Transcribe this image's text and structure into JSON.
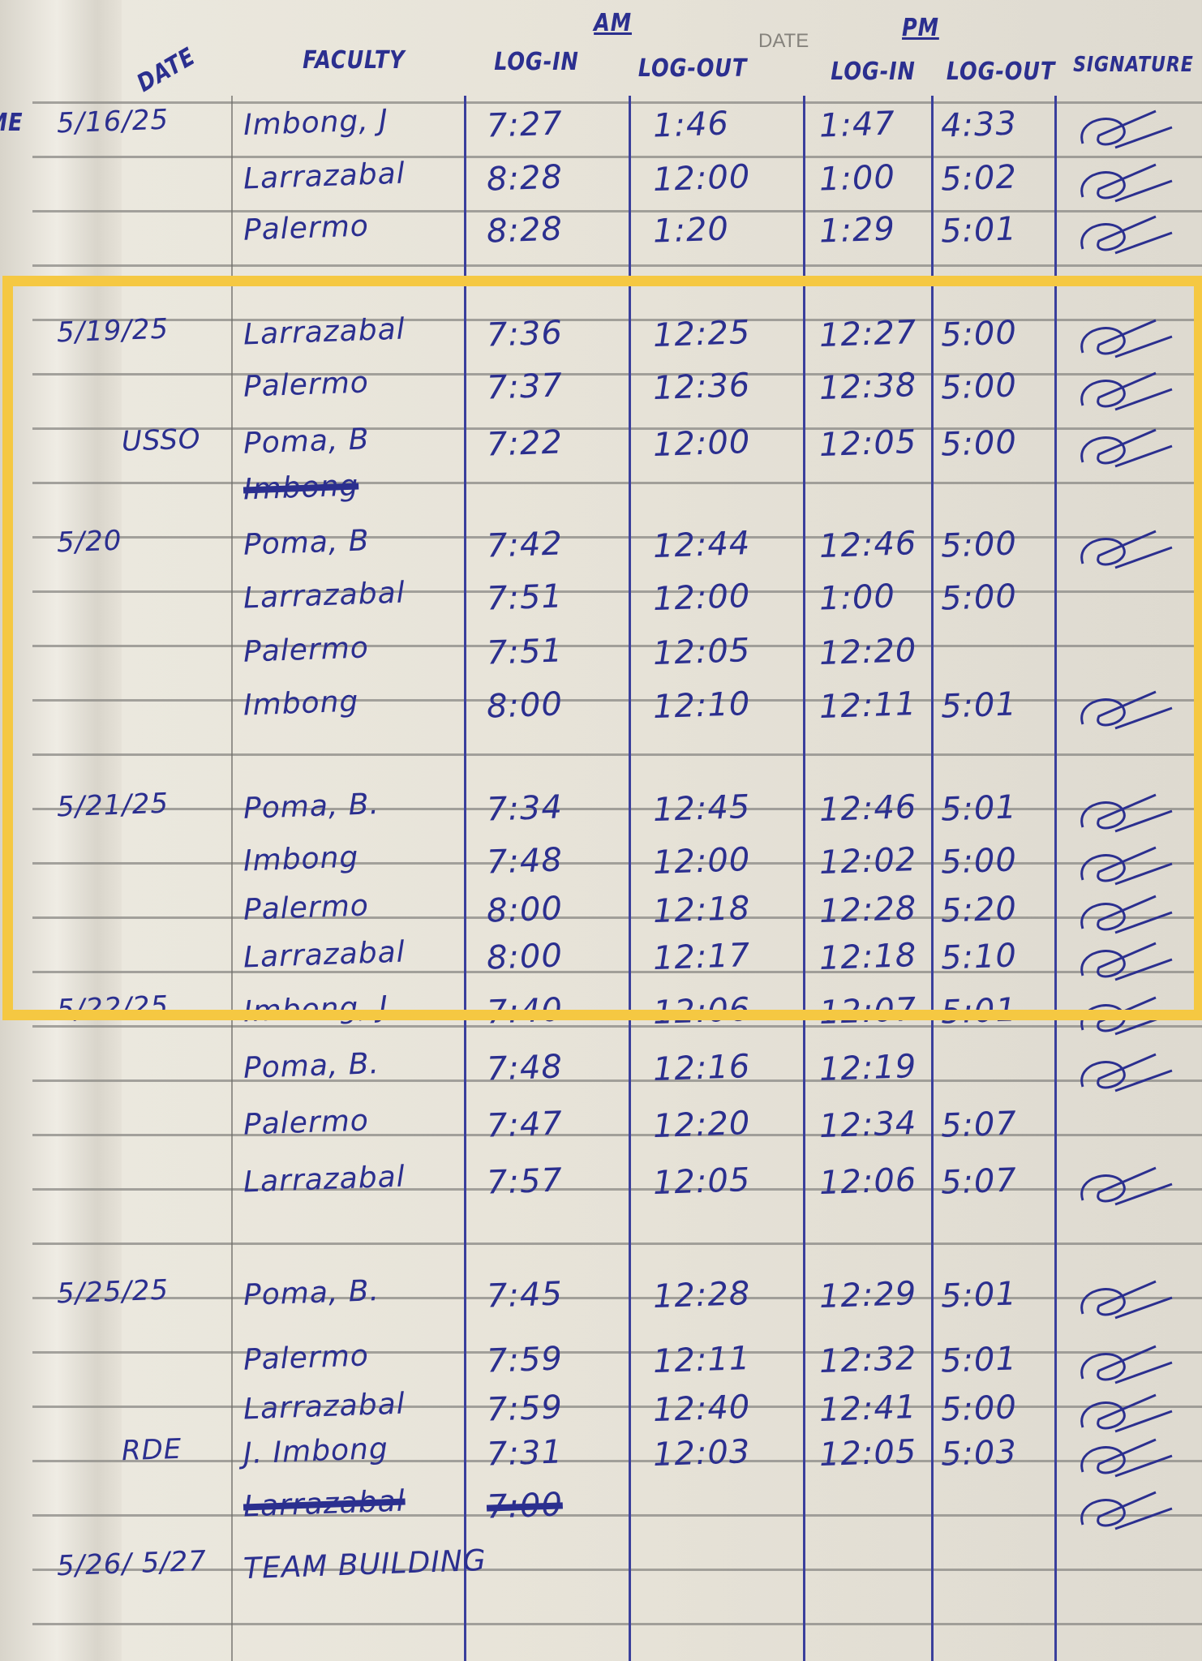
{
  "header": {
    "am_label": "AM",
    "pm_label": "PM",
    "printed_date": "DATE",
    "partial_left": "ME",
    "columns": {
      "date": "DATE",
      "faculty": "FACULTY",
      "am_login": "LOG-IN",
      "am_logout": "LOG-OUT",
      "pm_login": "LOG-IN",
      "pm_logout": "LOG-OUT",
      "signature": "SIGNATURE"
    }
  },
  "highlight_color": "#f5c842",
  "ink_color": "#2b2f8f",
  "rows": [
    {
      "date": "5/16/25",
      "faculty": "Imbong, J",
      "am_in": "7:27",
      "am_out": "1:46",
      "pm_in": "1:47",
      "pm_out": "4:33",
      "signed": true
    },
    {
      "date": "",
      "faculty": "Larrazabal",
      "am_in": "8:28",
      "am_out": "12:00",
      "pm_in": "1:00",
      "pm_out": "5:02",
      "signed": true
    },
    {
      "date": "",
      "faculty": "Palermo",
      "am_in": "8:28",
      "am_out": "1:20",
      "pm_in": "1:29",
      "pm_out": "5:01",
      "signed": true
    },
    {
      "date": "5/19/25",
      "faculty": "Larrazabal",
      "am_in": "7:36",
      "am_out": "12:25",
      "pm_in": "12:27",
      "pm_out": "5:00",
      "signed": true
    },
    {
      "date": "",
      "faculty": "Palermo",
      "am_in": "7:37",
      "am_out": "12:36",
      "pm_in": "12:38",
      "pm_out": "5:00",
      "signed": true
    },
    {
      "date": "USSO",
      "faculty": "Poma, B",
      "am_in": "7:22",
      "am_out": "12:00",
      "pm_in": "12:05",
      "pm_out": "5:00",
      "signed": true
    },
    {
      "date": "",
      "faculty": "Imbong",
      "am_in": "",
      "am_out": "",
      "pm_in": "",
      "pm_out": "",
      "crossed": true
    },
    {
      "date": "5/20",
      "faculty": "Poma, B",
      "am_in": "7:42",
      "am_out": "12:44",
      "pm_in": "12:46",
      "pm_out": "5:00",
      "signed": true
    },
    {
      "date": "",
      "faculty": "Larrazabal",
      "am_in": "7:51",
      "am_out": "12:00",
      "pm_in": "1:00",
      "pm_out": "5:00"
    },
    {
      "date": "",
      "faculty": "Palermo",
      "am_in": "7:51",
      "am_out": "12:05",
      "pm_in": "12:20",
      "pm_out": ""
    },
    {
      "date": "",
      "faculty": "Imbong",
      "am_in": "8:00",
      "am_out": "12:10",
      "pm_in": "12:11",
      "pm_out": "5:01",
      "signed": true
    },
    {
      "date": "5/21/25",
      "faculty": "Poma, B.",
      "am_in": "7:34",
      "am_out": "12:45",
      "pm_in": "12:46",
      "pm_out": "5:01",
      "signed": true
    },
    {
      "date": "",
      "faculty": "Imbong",
      "am_in": "7:48",
      "am_out": "12:00",
      "pm_in": "12:02",
      "pm_out": "5:00",
      "signed": true
    },
    {
      "date": "",
      "faculty": "Palermo",
      "am_in": "8:00",
      "am_out": "12:18",
      "pm_in": "12:28",
      "pm_out": "5:20",
      "signed": true
    },
    {
      "date": "",
      "faculty": "Larrazabal",
      "am_in": "8:00",
      "am_out": "12:17",
      "pm_in": "12:18",
      "pm_out": "5:10",
      "signed": true
    },
    {
      "date": "5/22/25",
      "faculty": "Imbong, J.",
      "am_in": "7:40",
      "am_out": "12:06",
      "pm_in": "12:07",
      "pm_out": "5:01",
      "signed": true
    },
    {
      "date": "",
      "faculty": "Poma, B.",
      "am_in": "7:48",
      "am_out": "12:16",
      "pm_in": "12:19",
      "pm_out": "",
      "signed": true
    },
    {
      "date": "",
      "faculty": "Palermo",
      "am_in": "7:47",
      "am_out": "12:20",
      "pm_in": "12:34",
      "pm_out": "5:07"
    },
    {
      "date": "",
      "faculty": "Larrazabal",
      "am_in": "7:57",
      "am_out": "12:05",
      "pm_in": "12:06",
      "pm_out": "5:07",
      "signed": true
    },
    {
      "date": "5/25/25",
      "faculty": "Poma, B.",
      "am_in": "7:45",
      "am_out": "12:28",
      "pm_in": "12:29",
      "pm_out": "5:01",
      "signed": true
    },
    {
      "date": "",
      "faculty": "Palermo",
      "am_in": "7:59",
      "am_out": "12:11",
      "pm_in": "12:32",
      "pm_out": "5:01",
      "signed": true
    },
    {
      "date": "",
      "faculty": "Larrazabal",
      "am_in": "7:59",
      "am_out": "12:40",
      "pm_in": "12:41",
      "pm_out": "5:00",
      "signed": true
    },
    {
      "date": "RDE",
      "faculty": "J. Imbong",
      "am_in": "7:31",
      "am_out": "12:03",
      "pm_in": "12:05",
      "pm_out": "5:03",
      "signed": true
    },
    {
      "date": "",
      "faculty": "Larrazabal",
      "am_in": "7:00",
      "am_out": "",
      "pm_in": "",
      "pm_out": "",
      "crossed": true,
      "signed": true
    },
    {
      "date": "5/26/ 5/27",
      "faculty": "TEAM BUILDING",
      "am_in": "",
      "am_out": "",
      "pm_in": "",
      "pm_out": ""
    }
  ]
}
